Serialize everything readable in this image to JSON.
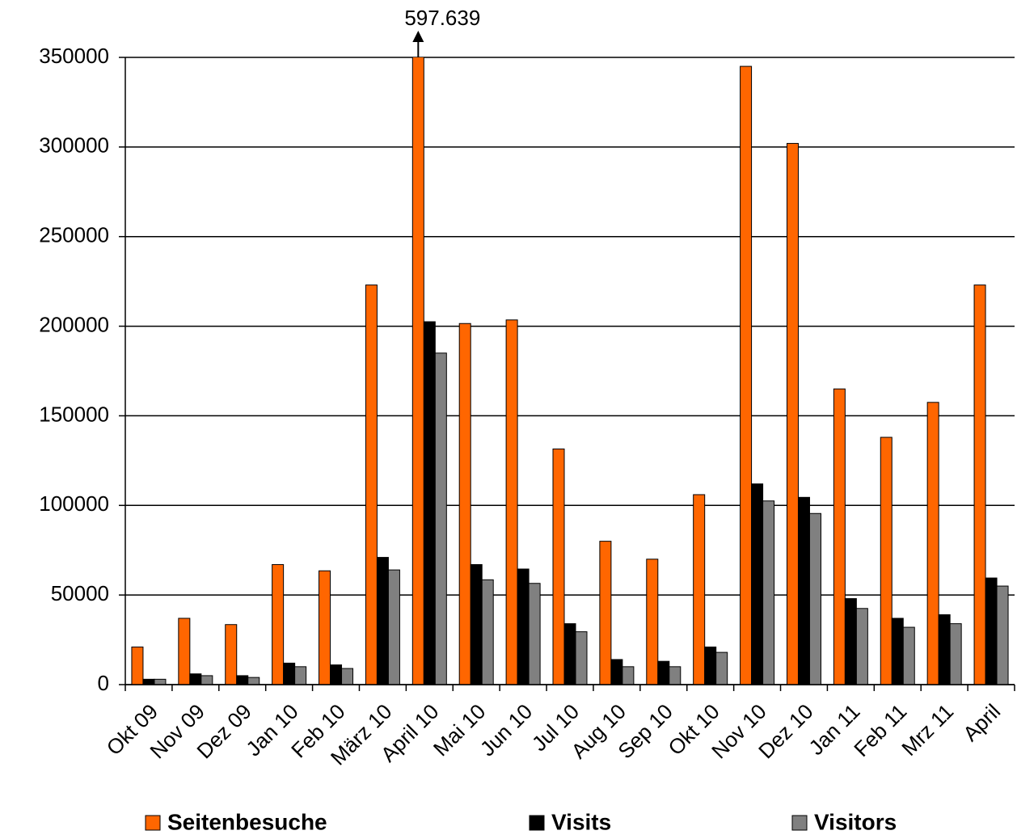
{
  "chart_data": {
    "type": "bar",
    "categories": [
      "Okt 09",
      "Nov 09",
      "Dez 09",
      "Jan 10",
      "Feb 10",
      "März 10",
      "April 10",
      "Mai 10",
      "Jun 10",
      "Jul 10",
      "Aug 10",
      "Sep 10",
      "Okt 10",
      "Nov 10",
      "Dez 10",
      "Jan 11",
      "Feb 11",
      "Mrz 11",
      "April"
    ],
    "series": [
      {
        "name": "Seitenbesuche",
        "color": "#ff6600",
        "values": [
          21000,
          37000,
          33500,
          67000,
          63500,
          223000,
          597639,
          201500,
          203500,
          131500,
          80000,
          70000,
          106000,
          345000,
          302000,
          165000,
          138000,
          157500,
          223000
        ],
        "value_labels": [
          null,
          null,
          null,
          null,
          null,
          null,
          "597.639",
          null,
          null,
          null,
          null,
          null,
          null,
          null,
          null,
          null,
          null,
          null,
          null
        ]
      },
      {
        "name": "Visits",
        "color": "#000000",
        "values": [
          3000,
          6000,
          5000,
          12000,
          11000,
          71000,
          202500,
          67000,
          64500,
          34000,
          14000,
          13000,
          21000,
          112000,
          104500,
          48000,
          37000,
          39000,
          59500
        ]
      },
      {
        "name": "Visitors",
        "color": "#808080",
        "values": [
          3000,
          5000,
          4000,
          10000,
          9000,
          64000,
          185000,
          58500,
          56500,
          29500,
          10000,
          10000,
          18000,
          102500,
          95500,
          42500,
          32000,
          34000,
          55000
        ]
      }
    ],
    "ylim": [
      0,
      350000
    ],
    "yticks": [
      0,
      50000,
      100000,
      150000,
      200000,
      250000,
      300000,
      350000
    ],
    "grid": true
  }
}
